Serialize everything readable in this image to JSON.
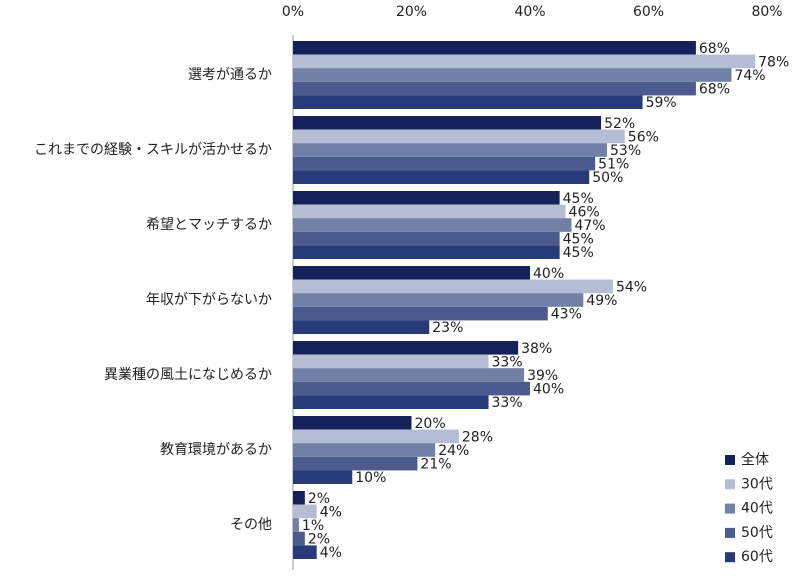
{
  "chart_data": {
    "type": "hbar",
    "categories": [
      "選考が通るか",
      "これまでの経験・スキルが活かせるか",
      "希望とマッチするか",
      "年収が下がらないか",
      "異業種の風土になじめるか",
      "教育環境があるか",
      "その他"
    ],
    "series": [
      {
        "name": "全体",
        "color": "#15215b",
        "values": [
          68,
          52,
          45,
          40,
          38,
          20,
          2
        ],
        "value_labels": [
          "68%",
          "52%",
          "45%",
          "40%",
          "38%",
          "20%",
          "2%"
        ]
      },
      {
        "name": "30代",
        "color": "#b4bdd4",
        "values": [
          78,
          56,
          46,
          54,
          33,
          28,
          4
        ],
        "value_labels": [
          "78%",
          "56%",
          "46%",
          "54%",
          "33%",
          "28%",
          "4%"
        ]
      },
      {
        "name": "40代",
        "color": "#7080a6",
        "values": [
          74,
          53,
          47,
          49,
          39,
          24,
          1
        ],
        "value_labels": [
          "74%",
          "53%",
          "47%",
          "49%",
          "39%",
          "24%",
          "1%"
        ]
      },
      {
        "name": "50代",
        "color": "#4b5b8d",
        "values": [
          68,
          51,
          45,
          43,
          40,
          21,
          2
        ],
        "value_labels": [
          "68%",
          "51%",
          "45%",
          "43%",
          "40%",
          "21%",
          "2%"
        ]
      },
      {
        "name": "60代",
        "color": "#263b78",
        "values": [
          59,
          50,
          45,
          23,
          33,
          10,
          4
        ],
        "value_labels": [
          "59%",
          "50%",
          "45%",
          "23%",
          "33%",
          "10%",
          "4%"
        ]
      }
    ],
    "xlim": [
      0,
      80
    ],
    "xticks": [
      {
        "value": 0,
        "label": "0%"
      },
      {
        "value": 20,
        "label": "20%"
      },
      {
        "value": 40,
        "label": "40%"
      },
      {
        "value": 60,
        "label": "60%"
      },
      {
        "value": 80,
        "label": "80%"
      }
    ],
    "legend": "lower-right"
  }
}
